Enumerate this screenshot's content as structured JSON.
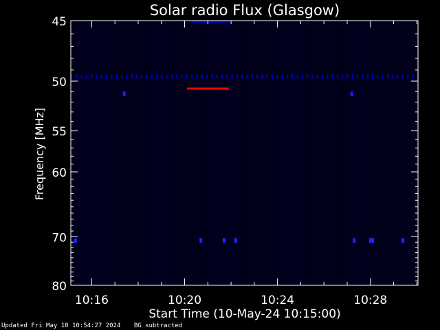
{
  "chart_data": {
    "type": "heatmap",
    "title": "Solar radio Flux (Glasgow)",
    "xlabel": "Start Time (10-May-24 10:15:00)",
    "ylabel": "Frequency [MHz]",
    "x_tick_labels": [
      "10:16",
      "10:20",
      "10:24",
      "10:28"
    ],
    "x_ticks_min": [
      16,
      20,
      24,
      28
    ],
    "x_range_min": [
      15.1,
      30.05
    ],
    "y_tick_labels": [
      "45",
      "50",
      "55",
      "60",
      "70",
      "80"
    ],
    "y_ticks_mhz": [
      45,
      50,
      55,
      60,
      70,
      80
    ],
    "y_range_mhz": [
      45,
      80
    ],
    "y_scale": "reciprocal",
    "background_color": "#000000",
    "plot_color": "#00001a",
    "colors": {
      "axes": "#ffffff",
      "text": "#ffffff",
      "faint_band": "#0000a0",
      "blip": "#2222ff",
      "strong": "#ff0000"
    },
    "features": [
      {
        "kind": "band",
        "label": "dotted interference line",
        "freq_mhz": 49.6,
        "x_min": [
          15.1,
          30.05
        ],
        "color": "#0000c8"
      },
      {
        "kind": "band",
        "label": "strong emission",
        "freq_mhz": 50.7,
        "x_min": [
          20.1,
          21.9
        ],
        "color": "#ff0000"
      },
      {
        "kind": "band",
        "label": "top edge band",
        "freq_mhz": 45.1,
        "x_min": [
          20.3,
          21.9
        ],
        "color": "#0000a0"
      },
      {
        "kind": "blip",
        "freq_mhz": 51.2,
        "x_min": [
          17.4
        ],
        "color": "#1a1aff"
      },
      {
        "kind": "blip",
        "freq_mhz": 51.2,
        "x_min": [
          27.2
        ],
        "color": "#1a1aff"
      },
      {
        "kind": "blip",
        "freq_mhz": 70.7,
        "x_min": [
          15.3,
          20.7,
          21.7,
          22.2,
          27.3,
          28.0,
          28.1,
          29.4
        ],
        "color": "#2222ff"
      }
    ]
  },
  "footer": {
    "updated": "Updated Fri May 10 10:54:27 2024",
    "note": "BG subtracted"
  }
}
